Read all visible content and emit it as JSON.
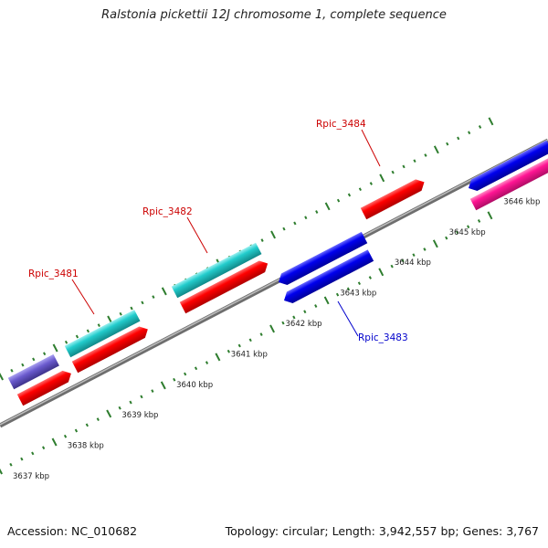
{
  "title": "Ralstonia pickettii 12J chromosome 1, complete sequence",
  "footer": {
    "accession": "Accession: NC_010682",
    "summary": "Topology: circular; Length: 3,942,557 bp; Genes: 3,767"
  },
  "map": {
    "unit": "kbp",
    "tick_labels": [
      "3637 kbp",
      "3638 kbp",
      "3639 kbp",
      "3640 kbp",
      "3641 kbp",
      "3642 kbp",
      "3643 kbp",
      "3644 kbp",
      "3645 kbp",
      "3646 kbp"
    ],
    "gene_labels": [
      {
        "name": "Rpic_3481",
        "color": "#cc0000"
      },
      {
        "name": "Rpic_3482",
        "color": "#cc0000"
      },
      {
        "name": "Rpic_3483",
        "color": "#0000cc"
      },
      {
        "name": "Rpic_3484",
        "color": "#cc0000"
      }
    ],
    "colors": {
      "backbone": "#808080",
      "ticks": "#2e7d2e",
      "red_feature": "#ff0000",
      "cyan_feature": "#22cccc",
      "blue_feature": "#0000ee",
      "purple_feature": "#6a5acd",
      "magenta_feature": "#ff1493"
    }
  }
}
